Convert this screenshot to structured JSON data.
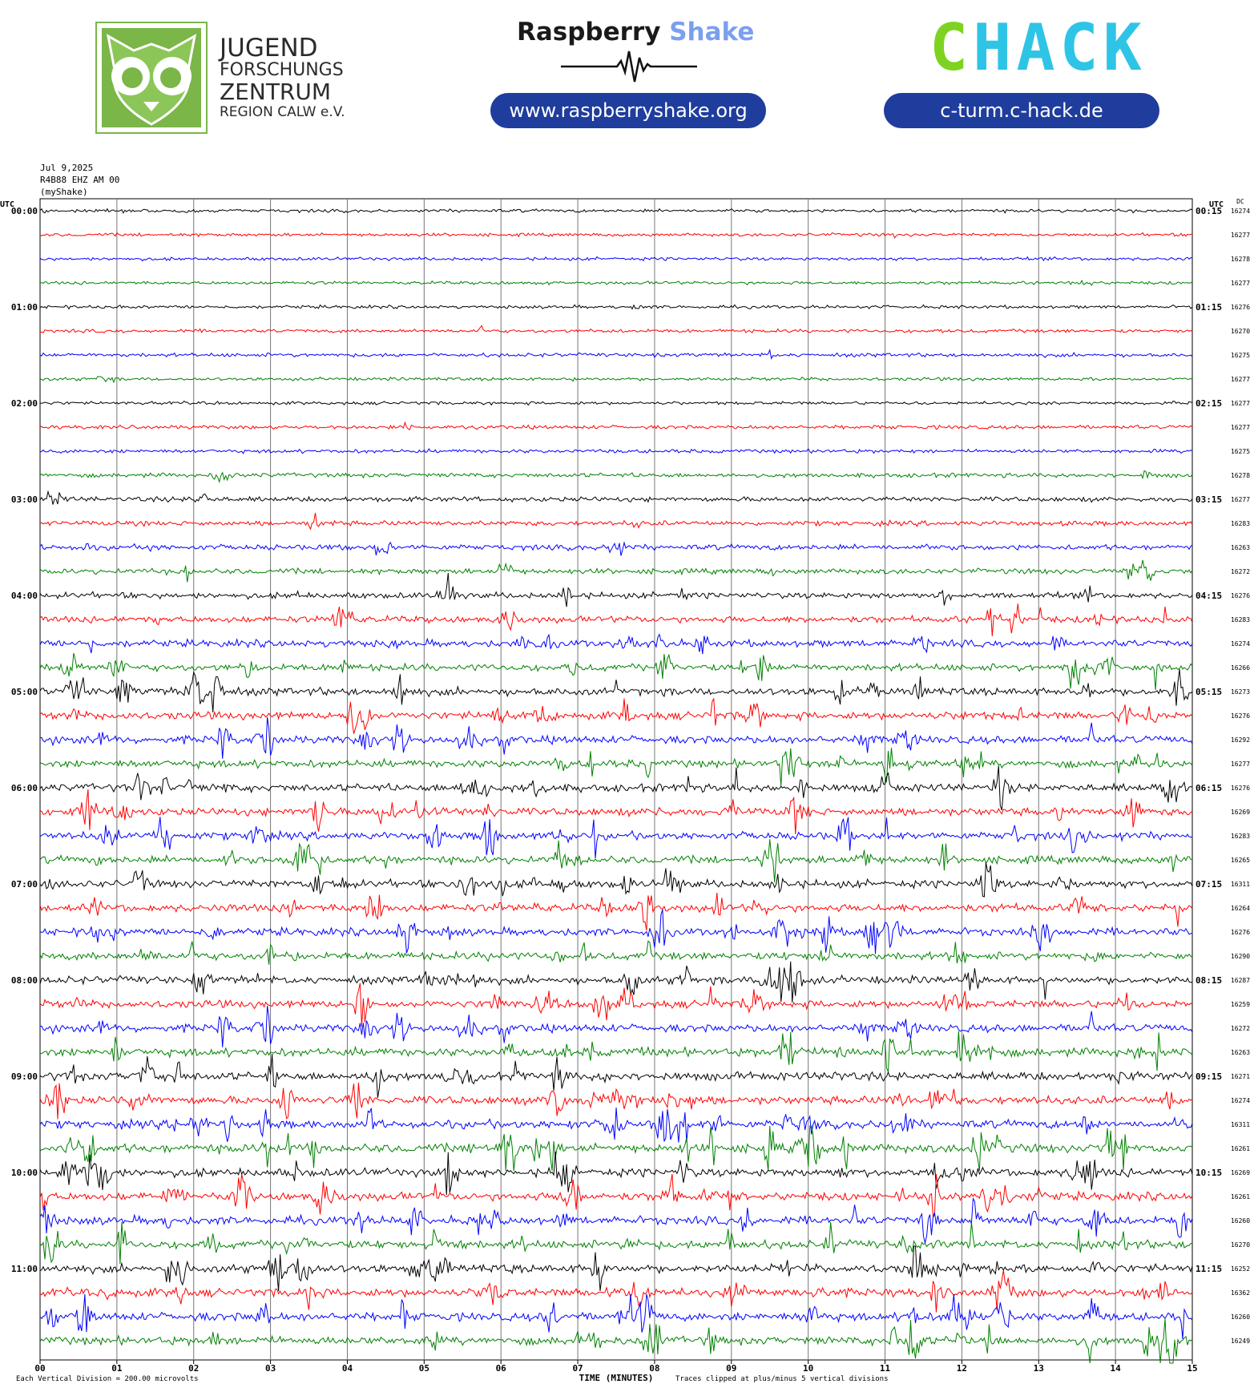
{
  "header": {
    "org_name_lines": [
      "JUGEND",
      "FORSCHUNGS",
      "ZENTRUM",
      "REGION CALW e.V."
    ],
    "rs_brand_black": "Raspberry",
    "rs_brand_blue": "Shake",
    "rs_url": "www.raspberryshake.org",
    "hack_brand_green": "C",
    "hack_brand_blue": "HACK",
    "hack_url": "c-turm.c-hack.de"
  },
  "colors": {
    "trace_cycle": [
      "#000000",
      "#ff0000",
      "#0000ff",
      "#008000"
    ],
    "jfz_green": "#7ab648",
    "pill_blue": "#1f3d9c",
    "rs_blue": "#7b9ff0",
    "hack_green": "#7ed321",
    "hack_blue": "#2ec4e6"
  },
  "chart_data": {
    "type": "line",
    "title_lines": [
      "Jul 9,2025",
      "R4B88 EHZ AM 00",
      "(myShake)"
    ],
    "left_axis_label": "UTC",
    "right_axis_label": "UTC",
    "dc_label": "DC",
    "xlabel": "TIME (MINUTES)",
    "xlim": [
      0,
      15
    ],
    "x_ticks": [
      "00",
      "01",
      "02",
      "03",
      "04",
      "05",
      "06",
      "07",
      "08",
      "09",
      "10",
      "11",
      "12",
      "13",
      "14",
      "15"
    ],
    "rows_per_hour": 4,
    "minutes_per_row": 15,
    "left_hour_labels": [
      "00:00",
      "01:00",
      "02:00",
      "03:00",
      "04:00",
      "05:00",
      "06:00",
      "07:00",
      "08:00",
      "09:00",
      "10:00",
      "11:00"
    ],
    "right_hour_labels": [
      "00:15",
      "01:15",
      "02:15",
      "03:15",
      "04:15",
      "05:15",
      "06:15",
      "07:15",
      "08:15",
      "09:15",
      "10:15",
      "11:15"
    ],
    "dc_values": [
      "16274",
      "16277",
      "16278",
      "16277",
      "16276",
      "16270",
      "16275",
      "16277",
      "16277",
      "16277",
      "16275",
      "16278",
      "16277",
      "16283",
      "16263",
      "16272",
      "16276",
      "16283",
      "16274",
      "16266",
      "16273",
      "16276",
      "16292",
      "16277",
      "16276",
      "16269",
      "16283",
      "16265",
      "16311",
      "16264",
      "16276",
      "16290",
      "16287",
      "16259",
      "16272",
      "16263",
      "16271",
      "16274",
      "16311",
      "16261",
      "16269",
      "16261",
      "16260",
      "16270",
      "16252",
      "16362",
      "16260",
      "16249"
    ],
    "row_activity": [
      0.2,
      0.2,
      0.2,
      0.2,
      0.2,
      0.25,
      0.3,
      0.2,
      0.2,
      0.3,
      0.3,
      0.4,
      0.5,
      0.5,
      0.6,
      0.6,
      0.7,
      0.8,
      0.9,
      0.9,
      1.0,
      1.0,
      1.0,
      1.0,
      1.0,
      1.0,
      1.0,
      1.0,
      1.0,
      1.0,
      1.0,
      1.0,
      1.0,
      1.0,
      1.0,
      1.1,
      1.1,
      1.1,
      1.1,
      1.2,
      1.1,
      1.1,
      1.1,
      1.1,
      1.1,
      1.1,
      1.1,
      1.1
    ],
    "scale_note": "Each Vertical Division =  200.00 microvolts",
    "clip_note": "Traces clipped at plus/minus 5 vertical divisions"
  }
}
